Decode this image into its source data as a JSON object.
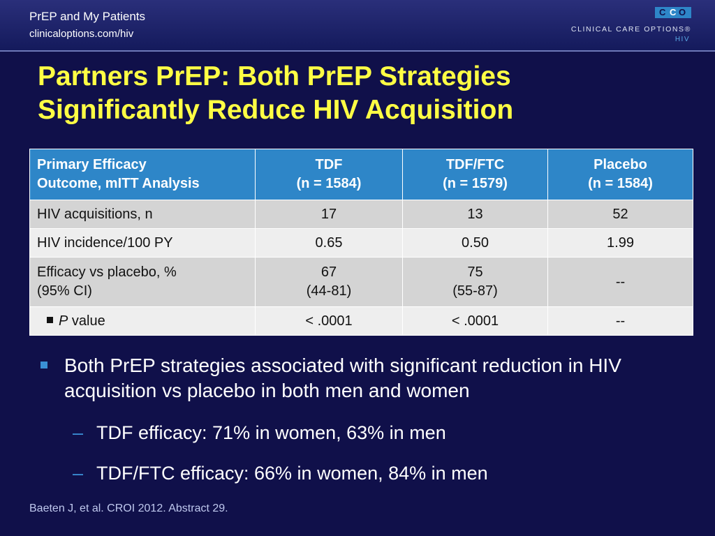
{
  "header": {
    "title": "PrEP and My Patients",
    "url": "clinicaloptions.com/hiv"
  },
  "logo": {
    "letters": [
      "C",
      "C",
      "O"
    ],
    "name": "CLINICAL CARE OPTIONS®",
    "sub": "HIV"
  },
  "slide": {
    "title_line1": "Partners PrEP: Both PrEP Strategies",
    "title_line2": "Significantly Reduce HIV Acquisition"
  },
  "table": {
    "headers": [
      {
        "line1": "Primary Efficacy",
        "line2": "Outcome, mITT Analysis"
      },
      {
        "line1": "TDF",
        "line2": "(n = 1584)"
      },
      {
        "line1": "TDF/FTC",
        "line2": "(n = 1579)"
      },
      {
        "line1": "Placebo",
        "line2": "(n = 1584)"
      }
    ],
    "rows": [
      {
        "label": "HIV acquisitions, n",
        "cells": [
          "17",
          "13",
          "52"
        ]
      },
      {
        "label": "HIV incidence/100 PY",
        "cells": [
          "0.65",
          "0.50",
          "1.99"
        ]
      },
      {
        "label_line1": "Efficacy vs placebo, %",
        "label_line2": "(95% CI)",
        "cells": [
          {
            "line1": "67",
            "line2": "(44-81)"
          },
          {
            "line1": "75",
            "line2": "(55-87)"
          },
          "--"
        ]
      },
      {
        "label_italic": "P",
        "label_rest": " value",
        "cells": [
          "< .0001",
          "< .0001",
          "--"
        ]
      }
    ]
  },
  "bullets": {
    "main": "Both PrEP strategies associated with significant reduction in HIV acquisition vs placebo in both men and women",
    "sub": [
      "TDF efficacy: 71% in women, 63% in men",
      "TDF/FTC efficacy: 66% in women, 84% in men"
    ],
    "dash": "–"
  },
  "footnote": "Baeten J, et al. CROI 2012. Abstract 29."
}
